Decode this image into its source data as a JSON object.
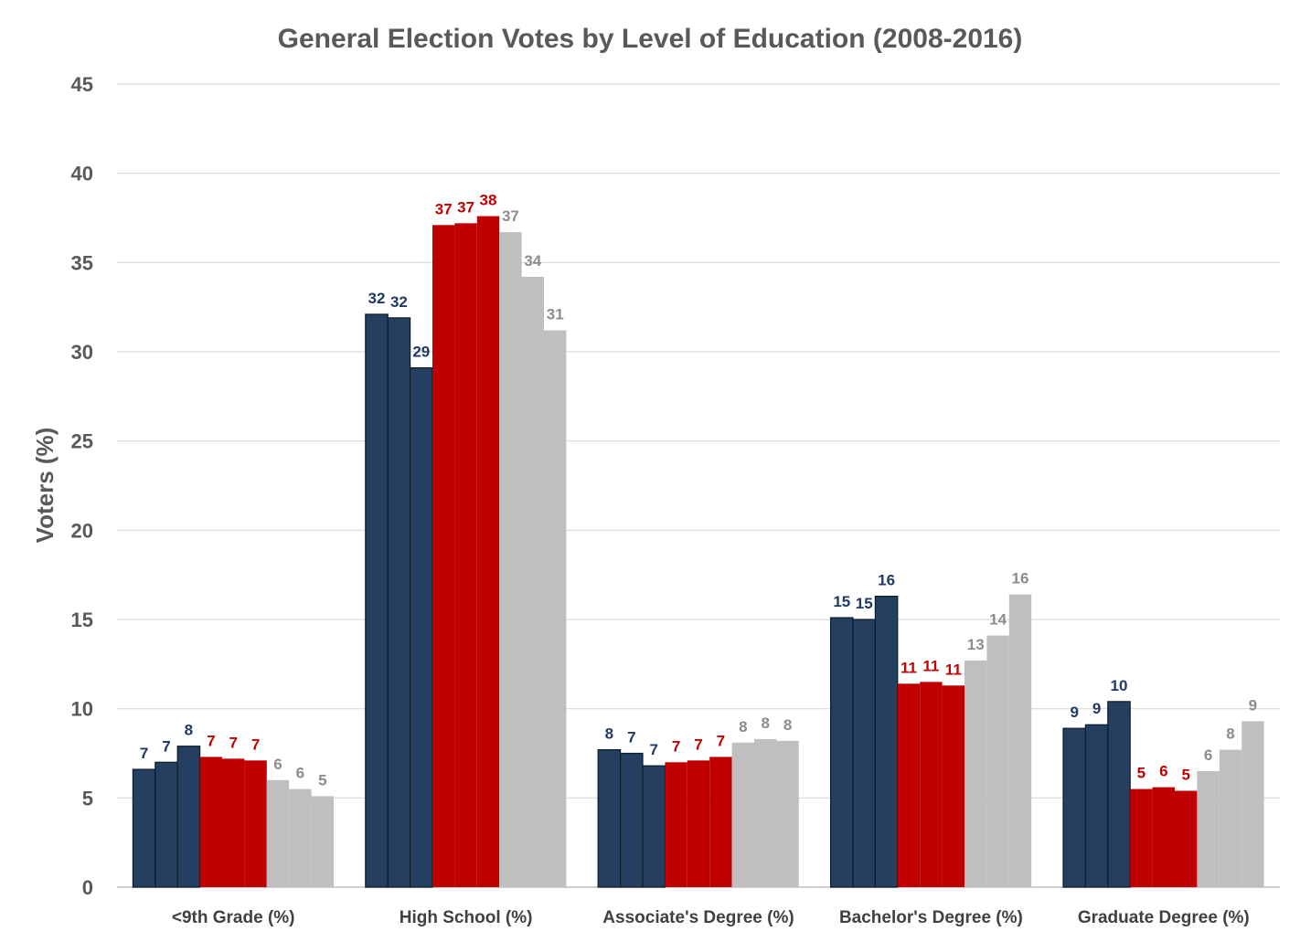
{
  "chart_data": {
    "type": "bar",
    "title": "General Election Votes by Level of Education (2008-2016)",
    "ylabel": "Voters (%)",
    "xlabel": "",
    "ylim": [
      0,
      45
    ],
    "yticks": [
      0,
      5,
      10,
      15,
      20,
      25,
      30,
      35,
      40,
      45
    ],
    "grid": true,
    "legend": "none",
    "categories": [
      "<9th Grade (%)",
      "High School (%)",
      "Associate's Degree (%)",
      "Bachelor's Degree (%)",
      "Graduate Degree (%)"
    ],
    "series": [
      {
        "color": "#243f60",
        "label_color": "#1f3864",
        "values": [
          6.6,
          32.1,
          7.7,
          15.1,
          8.9
        ],
        "labels": [
          "7",
          "32",
          "8",
          "15",
          "9"
        ]
      },
      {
        "color": "#243f60",
        "label_color": "#1f3864",
        "values": [
          7.0,
          31.9,
          7.5,
          15.0,
          9.1
        ],
        "labels": [
          "7",
          "32",
          "7",
          "15",
          "9"
        ]
      },
      {
        "color": "#243f60",
        "label_color": "#1f3864",
        "values": [
          7.9,
          29.1,
          6.8,
          16.3,
          10.4
        ],
        "labels": [
          "8",
          "29",
          "7",
          "16",
          "10"
        ]
      },
      {
        "color": "#c00000",
        "label_color": "#c00000",
        "values": [
          7.3,
          37.1,
          7.0,
          11.4,
          5.5
        ],
        "labels": [
          "7",
          "37",
          "7",
          "11",
          "5"
        ]
      },
      {
        "color": "#c00000",
        "label_color": "#c00000",
        "values": [
          7.2,
          37.2,
          7.1,
          11.5,
          5.6
        ],
        "labels": [
          "7",
          "37",
          "7",
          "11",
          "6"
        ]
      },
      {
        "color": "#c00000",
        "label_color": "#c00000",
        "values": [
          7.1,
          37.6,
          7.3,
          11.3,
          5.4
        ],
        "labels": [
          "7",
          "38",
          "7",
          "11",
          "5"
        ]
      },
      {
        "color": "#bfbfbf",
        "label_color": "#8c8c8c",
        "values": [
          6.0,
          36.7,
          8.1,
          12.7,
          6.5
        ],
        "labels": [
          "6",
          "37",
          "8",
          "13",
          "6"
        ]
      },
      {
        "color": "#bfbfbf",
        "label_color": "#8c8c8c",
        "values": [
          5.5,
          34.2,
          8.3,
          14.1,
          7.7
        ],
        "labels": [
          "6",
          "34",
          "8",
          "14",
          "8"
        ]
      },
      {
        "color": "#bfbfbf",
        "label_color": "#8c8c8c",
        "values": [
          5.1,
          31.2,
          8.2,
          16.4,
          9.3
        ],
        "labels": [
          "5",
          "31",
          "8",
          "16",
          "9"
        ]
      }
    ]
  }
}
